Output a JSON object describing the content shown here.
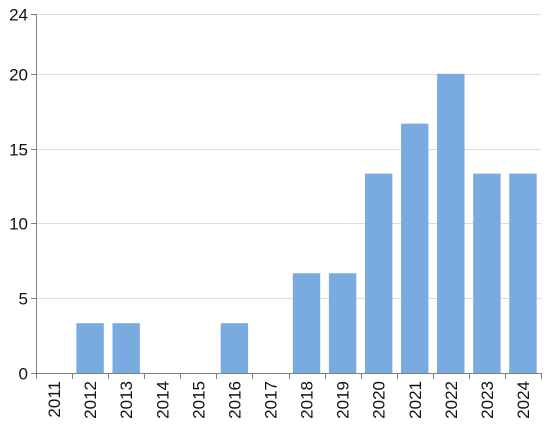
{
  "chart_data": {
    "type": "bar",
    "title": "",
    "xlabel": "",
    "ylabel": "",
    "categories": [
      "2011",
      "2012",
      "2013",
      "2014",
      "2015",
      "2016",
      "2017",
      "2018",
      "2019",
      "2020",
      "2021",
      "2022",
      "2023",
      "2024"
    ],
    "values": [
      0,
      3.33,
      3.33,
      0,
      0,
      3.33,
      0,
      6.67,
      6.67,
      13.33,
      16.67,
      20,
      13.33,
      13.33
    ],
    "ylim": [
      0,
      24
    ],
    "yticks": [
      0,
      5,
      10,
      15,
      20,
      24
    ],
    "grid": true,
    "bar_color": "#7aabe0",
    "legend": "none"
  }
}
